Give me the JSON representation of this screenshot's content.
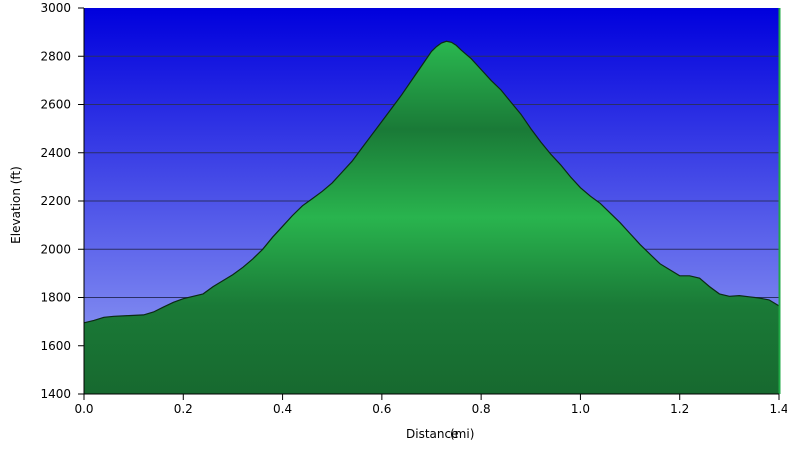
{
  "chart_data": {
    "type": "area",
    "title": "",
    "xlabel": "Distance",
    "xunit": "(mi)",
    "ylabel": "Elevation (ft)",
    "xlim": [
      0,
      1.4
    ],
    "ylim": [
      1400,
      3000
    ],
    "xticks": [
      "0.0",
      "0.2",
      "0.4",
      "0.6",
      "0.8",
      "1.0",
      "1.2",
      "1.4"
    ],
    "yticks": [
      "1400",
      "1600",
      "1800",
      "2000",
      "2200",
      "2400",
      "2600",
      "2800",
      "3000"
    ],
    "grid": true,
    "legend": "none",
    "colors": {
      "sky_top": "#0000dd",
      "sky_bottom": "#9aa6f4",
      "fill_dark": "#166b30",
      "fill_light": "#26b04c",
      "line": "#0c2a14",
      "grid": "#2a2f66"
    },
    "series": [
      {
        "x": [
          0.0,
          0.02,
          0.04,
          0.06,
          0.09,
          0.12,
          0.14,
          0.16,
          0.18,
          0.2,
          0.22,
          0.24,
          0.26,
          0.28,
          0.3,
          0.32,
          0.34,
          0.36,
          0.38,
          0.4,
          0.42,
          0.44,
          0.46,
          0.48,
          0.5,
          0.52,
          0.54,
          0.56,
          0.58,
          0.6,
          0.62,
          0.64,
          0.66,
          0.68,
          0.7,
          0.71,
          0.72,
          0.73,
          0.74,
          0.75,
          0.76,
          0.78,
          0.8,
          0.82,
          0.84,
          0.86,
          0.88,
          0.9,
          0.92,
          0.94,
          0.96,
          0.98,
          1.0,
          1.02,
          1.04,
          1.06,
          1.08,
          1.1,
          1.12,
          1.14,
          1.16,
          1.18,
          1.2,
          1.22,
          1.24,
          1.26,
          1.28,
          1.3,
          1.32,
          1.34,
          1.36,
          1.38,
          1.4
        ],
        "y": [
          1695,
          1705,
          1718,
          1722,
          1725,
          1728,
          1740,
          1760,
          1780,
          1795,
          1805,
          1815,
          1845,
          1870,
          1895,
          1925,
          1960,
          2000,
          2050,
          2095,
          2140,
          2180,
          2210,
          2240,
          2275,
          2320,
          2365,
          2420,
          2475,
          2530,
          2585,
          2640,
          2700,
          2760,
          2820,
          2840,
          2855,
          2862,
          2858,
          2845,
          2825,
          2790,
          2745,
          2700,
          2660,
          2610,
          2560,
          2500,
          2445,
          2395,
          2350,
          2300,
          2255,
          2220,
          2190,
          2150,
          2110,
          2065,
          2020,
          1980,
          1940,
          1915,
          1890,
          1890,
          1880,
          1845,
          1815,
          1805,
          1808,
          1803,
          1798,
          1790,
          1765
        ]
      }
    ]
  }
}
